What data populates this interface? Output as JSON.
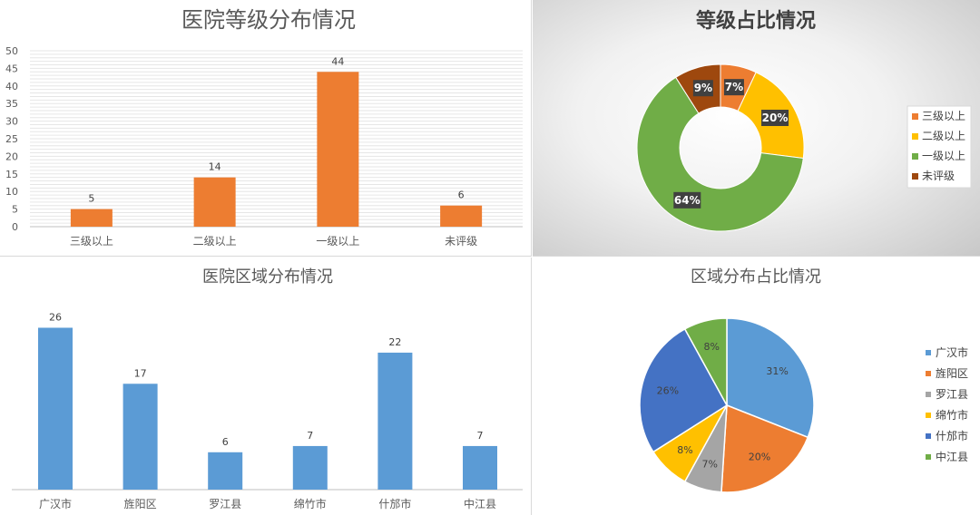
{
  "chart_data": [
    {
      "id": "grade-bar",
      "type": "bar",
      "title": "医院等级分布情况",
      "categories": [
        "三级以上",
        "二级以上",
        "一级以上",
        "未评级"
      ],
      "values": [
        5,
        14,
        44,
        6
      ],
      "ylim": [
        0,
        50
      ],
      "yticks": [
        0,
        5,
        10,
        15,
        20,
        25,
        30,
        35,
        40,
        45,
        50
      ],
      "grid": true,
      "color": "#ED7D31"
    },
    {
      "id": "grade-donut",
      "type": "pie",
      "subtype": "donut",
      "title": "等级占比情况",
      "labels": [
        "三级以上",
        "二级以上",
        "一级以上",
        "未评级"
      ],
      "values": [
        7,
        20,
        64,
        9
      ],
      "value_labels": [
        "7%",
        "20%",
        "64%",
        "9%"
      ],
      "colors": [
        "#ED7D31",
        "#FFC000",
        "#70AD47",
        "#9E480E"
      ],
      "legend": "right"
    },
    {
      "id": "region-bar",
      "type": "bar",
      "title": "医院区域分布情况",
      "categories": [
        "广汉市",
        "旌阳区",
        "罗江县",
        "绵竹市",
        "什邡市",
        "中江县"
      ],
      "values": [
        26,
        17,
        6,
        7,
        22,
        7
      ],
      "grid": false,
      "color": "#5B9BD5"
    },
    {
      "id": "region-pie",
      "type": "pie",
      "title": "区域分布占比情况",
      "labels": [
        "广汉市",
        "旌阳区",
        "罗江县",
        "绵竹市",
        "什邡市",
        "中江县"
      ],
      "values": [
        31,
        20,
        7,
        8,
        26,
        8
      ],
      "value_labels": [
        "31%",
        "20%",
        "7%",
        "8%",
        "26%",
        "8%"
      ],
      "colors": [
        "#5B9BD5",
        "#ED7D31",
        "#A5A5A5",
        "#FFC000",
        "#4472C4",
        "#70AD47"
      ],
      "legend": "right"
    }
  ]
}
